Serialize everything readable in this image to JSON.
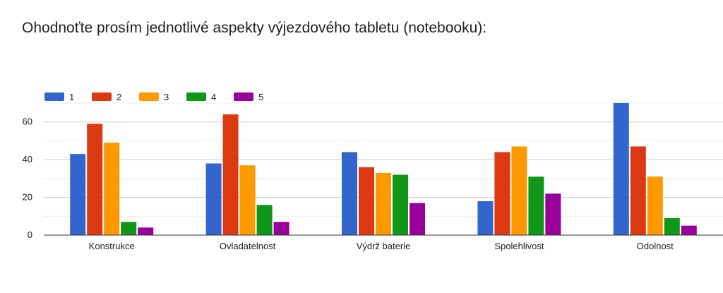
{
  "title": "Ohodnoťte prosím jednotlivé aspekty výjezdového tabletu (notebooku):",
  "chart_data": {
    "type": "bar",
    "title": "Ohodnoťte prosím jednotlivé aspekty výjezdového tabletu (notebooku):",
    "xlabel": "",
    "ylabel": "",
    "categories": [
      "Konstrukce",
      "Ovladatelnost",
      "Výdrž baterie",
      "Spolehlivost",
      "Odolnost"
    ],
    "series": [
      {
        "name": "1",
        "color": "#3366cc",
        "values": [
          43,
          38,
          44,
          18,
          70
        ]
      },
      {
        "name": "2",
        "color": "#dc3912",
        "values": [
          59,
          64,
          36,
          44,
          47
        ]
      },
      {
        "name": "3",
        "color": "#ff9900",
        "values": [
          49,
          37,
          33,
          47,
          31
        ]
      },
      {
        "name": "4",
        "color": "#109618",
        "values": [
          7,
          16,
          32,
          31,
          9
        ]
      },
      {
        "name": "5",
        "color": "#990099",
        "values": [
          4,
          7,
          17,
          22,
          5
        ]
      }
    ],
    "ylim": [
      0,
      70
    ],
    "yticks": [
      0,
      20,
      40,
      60
    ],
    "grid": true,
    "legend": "top-left"
  }
}
